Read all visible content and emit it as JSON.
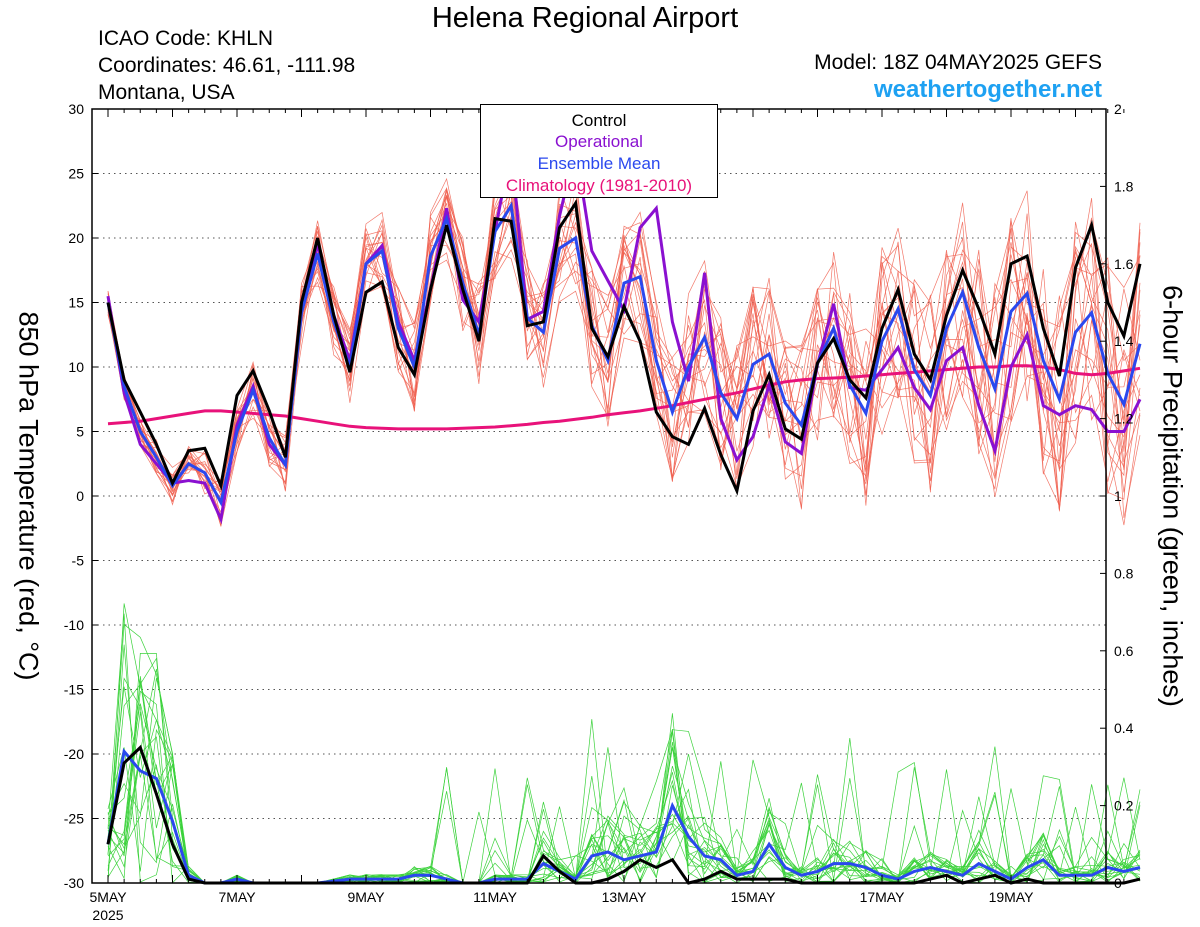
{
  "header": {
    "title": "Helena Regional Airport",
    "icao": "ICAO Code: KHLN",
    "coords": "Coordinates: 46.61, -111.98",
    "location": "Montana, USA",
    "model": "Model: 18Z 04MAY2025 GEFS",
    "site": "weathertogether.net"
  },
  "legend": {
    "control": "Control",
    "operational": "Operational",
    "mean": "Ensemble Mean",
    "climo": "Climatology (1981-2010)"
  },
  "axes": {
    "left_label": "850 hPa Temperature (red, °C)",
    "right_label": "6-hour Precipitation (green, inches)",
    "year_label": "2025"
  },
  "colors": {
    "control": "#000000",
    "operational": "#8a10d0",
    "mean": "#2a48ee",
    "climo": "#e8127a",
    "members_temp": "#f06050",
    "members_precip": "#3cd23c"
  },
  "chart_data": {
    "type": "line",
    "x_unit": "days from 00Z 5 May 2025 (6-hourly steps)",
    "x_range": [
      0,
      15.75
    ],
    "x_ticks": [
      {
        "x": 0,
        "label": "5MAY"
      },
      {
        "x": 2,
        "label": "7MAY"
      },
      {
        "x": 4,
        "label": "9MAY"
      },
      {
        "x": 6,
        "label": "11MAY"
      },
      {
        "x": 8,
        "label": "13MAY"
      },
      {
        "x": 10,
        "label": "15MAY"
      },
      {
        "x": 12,
        "label": "17MAY"
      },
      {
        "x": 14,
        "label": "19MAY"
      }
    ],
    "y_left": {
      "label": "850 hPa Temperature (red, °C)",
      "range": [
        -30,
        30
      ],
      "ticks": [
        30,
        25,
        20,
        15,
        10,
        5,
        0,
        -5,
        -10,
        -15,
        -20,
        -25,
        -30
      ]
    },
    "y_right": {
      "label": "6-hour Precipitation (green, inches)",
      "range": [
        0,
        2
      ],
      "ticks": [
        2,
        1.8,
        1.6,
        1.4,
        1.2,
        1,
        0.8,
        0.6,
        0.4,
        0.2,
        0
      ]
    },
    "grid": "dotted horizontal",
    "temperature": {
      "control": [
        15,
        9,
        6.5,
        4,
        1,
        3.5,
        3.7,
        0.8,
        7.8,
        9.7,
        6.6,
        3,
        15,
        20,
        14,
        9.6,
        15.8,
        16.6,
        11.5,
        9.4,
        16,
        21,
        16,
        12,
        21.5,
        21.3,
        13.2,
        13.5,
        20.8,
        22.7,
        13,
        10.8,
        14.7,
        12,
        6.5,
        4.6,
        4,
        6.8,
        3.2,
        0.4,
        6.6,
        9.4,
        5.2,
        4.4,
        10.3,
        12.2,
        9,
        7.6,
        13,
        16,
        11,
        9,
        14,
        17.5,
        14.5,
        11,
        18,
        18.6,
        13,
        9.3,
        17.7,
        21,
        15,
        12.4,
        18
      ],
      "operational": [
        15.5,
        8,
        4,
        2.5,
        1,
        1.2,
        1,
        -1.8,
        5.5,
        8.5,
        4,
        2.4,
        14.5,
        19.5,
        14,
        10.5,
        18,
        19.4,
        13.5,
        10.5,
        16,
        22.3,
        15.2,
        13.5,
        20.5,
        27,
        13.7,
        14.3,
        21.7,
        27,
        19,
        16.7,
        14.4,
        20.8,
        22.3,
        13.5,
        8.9,
        17.3,
        6,
        2.8,
        4.6,
        8.6,
        4.2,
        3.3,
        10.2,
        14.9,
        8.4,
        8.2,
        9.8,
        11.5,
        8.4,
        6.7,
        10.5,
        11.5,
        7,
        3.5,
        10,
        12.5,
        7,
        6.3,
        7,
        6.7,
        5,
        5,
        7.5
      ],
      "mean": [
        15,
        8.5,
        5,
        3,
        0.8,
        2.5,
        1.8,
        -0.5,
        5,
        8.2,
        4.5,
        2.4,
        14.2,
        18.8,
        13.5,
        10,
        18,
        19,
        13,
        10,
        18.6,
        21.5,
        16.5,
        12.5,
        20.5,
        22.5,
        13.8,
        12.7,
        19.2,
        20,
        13.2,
        10.5,
        16.5,
        17,
        10.5,
        6.5,
        10,
        12.3,
        8,
        6,
        10.2,
        11,
        7.2,
        5.5,
        10.3,
        13,
        8.6,
        6.4,
        12,
        14.5,
        9.8,
        7.8,
        13,
        15.8,
        11.5,
        8.3,
        14.3,
        15.7,
        10.5,
        7.5,
        12.7,
        14.2,
        9.5,
        7.1,
        11.8
      ],
      "climatology": [
        5.6,
        5.7,
        5.8,
        6,
        6.2,
        6.4,
        6.6,
        6.6,
        6.5,
        6.4,
        6.3,
        6.2,
        6,
        5.8,
        5.6,
        5.4,
        5.3,
        5.25,
        5.2,
        5.2,
        5.2,
        5.2,
        5.25,
        5.3,
        5.35,
        5.45,
        5.55,
        5.7,
        5.8,
        5.95,
        6.1,
        6.3,
        6.45,
        6.6,
        6.8,
        7,
        7.25,
        7.5,
        7.75,
        8,
        8.3,
        8.6,
        8.85,
        9,
        9.1,
        9.15,
        9.2,
        9.3,
        9.4,
        9.5,
        9.6,
        9.7,
        9.8,
        9.9,
        10,
        10,
        10.1,
        10.1,
        10,
        9.8,
        9.5,
        9.4,
        9.5,
        9.7,
        9.9
      ]
    },
    "precipitation": {
      "control": [
        0.1,
        0.31,
        0.35,
        0.23,
        0.1,
        0.01,
        0,
        0,
        0,
        0,
        0,
        0,
        0,
        0,
        0,
        0,
        0,
        0,
        0,
        0,
        0,
        0,
        0,
        0,
        0,
        0,
        0,
        0.07,
        0.03,
        0,
        0,
        0.01,
        0.03,
        0.06,
        0.04,
        0.06,
        0,
        0.01,
        0.03,
        0.01,
        0.01,
        0.01,
        0.01,
        0,
        0,
        0,
        0,
        0,
        0,
        0,
        0,
        0.01,
        0.02,
        0,
        0.01,
        0.02,
        0,
        0.01,
        0,
        0,
        0,
        0,
        0,
        0,
        0.01
      ],
      "operational": [],
      "mean": [
        0.1,
        0.34,
        0.29,
        0.27,
        0.16,
        0.02,
        0,
        0,
        0.01,
        0,
        0,
        0,
        0,
        0,
        0.005,
        0.01,
        0.01,
        0.01,
        0.01,
        0.02,
        0.02,
        0.01,
        0,
        0,
        0.01,
        0.01,
        0.01,
        0.05,
        0.03,
        0.01,
        0.07,
        0.08,
        0.06,
        0.07,
        0.08,
        0.2,
        0.12,
        0.07,
        0.06,
        0.02,
        0.03,
        0.1,
        0.04,
        0.02,
        0.03,
        0.05,
        0.05,
        0.04,
        0.02,
        0.01,
        0.03,
        0.04,
        0.03,
        0.02,
        0.05,
        0.03,
        0.01,
        0.04,
        0.06,
        0.02,
        0.02,
        0.02,
        0.04,
        0.03,
        0.04
      ]
    }
  }
}
